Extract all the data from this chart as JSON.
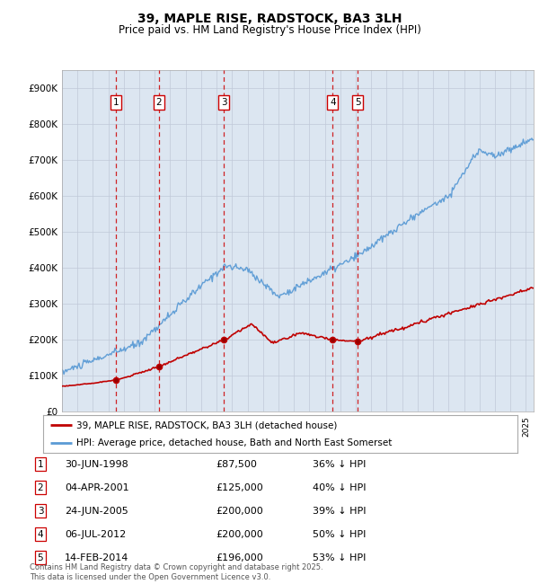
{
  "title": "39, MAPLE RISE, RADSTOCK, BA3 3LH",
  "subtitle": "Price paid vs. HM Land Registry's House Price Index (HPI)",
  "ylim": [
    0,
    950000
  ],
  "yticks": [
    0,
    100000,
    200000,
    300000,
    400000,
    500000,
    600000,
    700000,
    800000,
    900000
  ],
  "ytick_labels": [
    "£0",
    "£100K",
    "£200K",
    "£300K",
    "£400K",
    "£500K",
    "£600K",
    "£700K",
    "£800K",
    "£900K"
  ],
  "hpi_color": "#5b9bd5",
  "price_color": "#c00000",
  "vline_color": "#cc0000",
  "plot_bg": "#dce6f1",
  "sale_dates_x": [
    1998.5,
    2001.26,
    2005.48,
    2012.51,
    2014.12
  ],
  "sale_prices": [
    87500,
    125000,
    200000,
    200000,
    196000
  ],
  "sale_labels": [
    "1",
    "2",
    "3",
    "4",
    "5"
  ],
  "purchases": [
    {
      "num": "1",
      "date": "30-JUN-1998",
      "price": "£87,500",
      "pct": "36% ↓ HPI"
    },
    {
      "num": "2",
      "date": "04-APR-2001",
      "price": "£125,000",
      "pct": "40% ↓ HPI"
    },
    {
      "num": "3",
      "date": "24-JUN-2005",
      "price": "£200,000",
      "pct": "39% ↓ HPI"
    },
    {
      "num": "4",
      "date": "06-JUL-2012",
      "price": "£200,000",
      "pct": "50% ↓ HPI"
    },
    {
      "num": "5",
      "date": "14-FEB-2014",
      "price": "£196,000",
      "pct": "53% ↓ HPI"
    }
  ],
  "footer": "Contains HM Land Registry data © Crown copyright and database right 2025.\nThis data is licensed under the Open Government Licence v3.0.",
  "legend_line1": "39, MAPLE RISE, RADSTOCK, BA3 3LH (detached house)",
  "legend_line2": "HPI: Average price, detached house, Bath and North East Somerset",
  "xstart": 1995,
  "xend": 2025.5
}
